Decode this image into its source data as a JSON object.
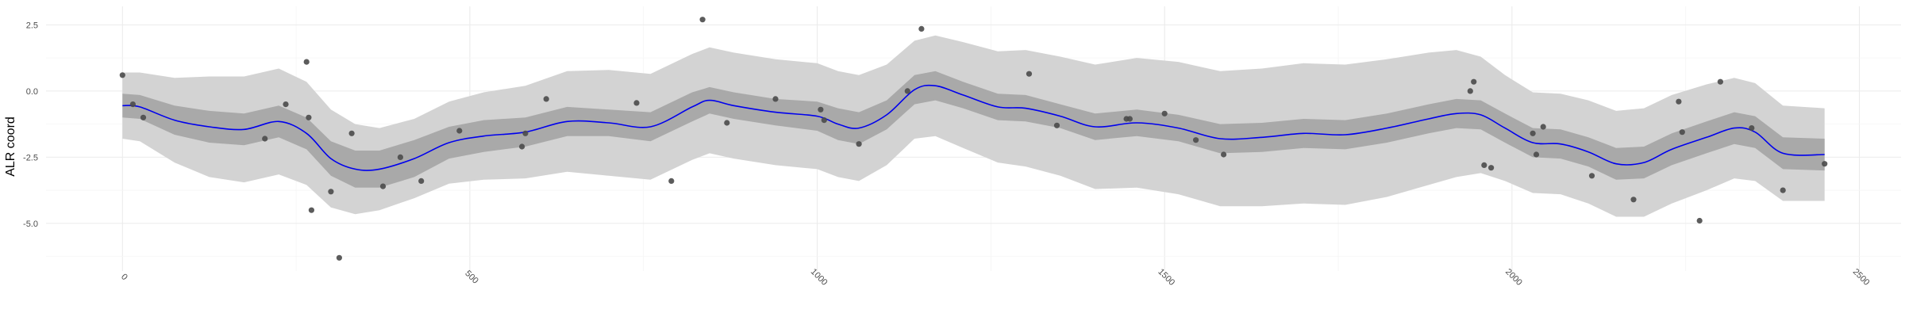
{
  "chart_data": {
    "type": "scatter",
    "title": "",
    "xlabel": "",
    "ylabel": "ALR coord",
    "xlim": [
      -110,
      2560
    ],
    "ylim": [
      -6.8,
      3.2
    ],
    "x_ticks": [
      0,
      500,
      1000,
      1500,
      2000,
      2500
    ],
    "x_tick_labels": [
      "0",
      "500",
      "1000",
      "1500",
      "2000",
      "2500"
    ],
    "y_ticks": [
      2.5,
      0.0,
      -2.5,
      -5.0
    ],
    "y_tick_labels": [
      "2.5",
      "0.0",
      "-2.5",
      "-5.0"
    ],
    "grid": true,
    "legend": "none",
    "colors": {
      "points": "#4a4a4a",
      "fit_line": "#0000ee",
      "inner_band": "#a9a9a9",
      "outer_band": "#d3d3d3",
      "grid": "#ebebeb"
    },
    "points": [
      {
        "x": 0,
        "y": 0.6
      },
      {
        "x": 15,
        "y": -0.5
      },
      {
        "x": 30,
        "y": -1.0
      },
      {
        "x": 205,
        "y": -1.8
      },
      {
        "x": 235,
        "y": -0.5
      },
      {
        "x": 265,
        "y": 1.1
      },
      {
        "x": 268,
        "y": -1.0
      },
      {
        "x": 272,
        "y": -4.5
      },
      {
        "x": 300,
        "y": -3.8
      },
      {
        "x": 312,
        "y": -6.3
      },
      {
        "x": 330,
        "y": -1.6
      },
      {
        "x": 375,
        "y": -3.6
      },
      {
        "x": 400,
        "y": -2.5
      },
      {
        "x": 430,
        "y": -3.4
      },
      {
        "x": 485,
        "y": -1.5
      },
      {
        "x": 575,
        "y": -2.1
      },
      {
        "x": 580,
        "y": -1.6
      },
      {
        "x": 610,
        "y": -0.3
      },
      {
        "x": 740,
        "y": -0.45
      },
      {
        "x": 790,
        "y": -3.4
      },
      {
        "x": 835,
        "y": 2.7
      },
      {
        "x": 870,
        "y": -1.2
      },
      {
        "x": 940,
        "y": -0.3
      },
      {
        "x": 1005,
        "y": -0.7
      },
      {
        "x": 1010,
        "y": -1.1
      },
      {
        "x": 1060,
        "y": -2.0
      },
      {
        "x": 1130,
        "y": 0.0
      },
      {
        "x": 1150,
        "y": 2.35
      },
      {
        "x": 1305,
        "y": 0.65
      },
      {
        "x": 1345,
        "y": -1.3
      },
      {
        "x": 1445,
        "y": -1.05
      },
      {
        "x": 1450,
        "y": -1.05
      },
      {
        "x": 1500,
        "y": -0.85
      },
      {
        "x": 1545,
        "y": -1.85
      },
      {
        "x": 1585,
        "y": -2.4
      },
      {
        "x": 1940,
        "y": 0.0
      },
      {
        "x": 1945,
        "y": 0.35
      },
      {
        "x": 1960,
        "y": -2.8
      },
      {
        "x": 1970,
        "y": -2.9
      },
      {
        "x": 2030,
        "y": -1.6
      },
      {
        "x": 2035,
        "y": -2.4
      },
      {
        "x": 2045,
        "y": -1.35
      },
      {
        "x": 2115,
        "y": -3.2
      },
      {
        "x": 2175,
        "y": -4.1
      },
      {
        "x": 2240,
        "y": -0.4
      },
      {
        "x": 2245,
        "y": -1.55
      },
      {
        "x": 2270,
        "y": -4.9
      },
      {
        "x": 2300,
        "y": 0.35
      },
      {
        "x": 2345,
        "y": -1.4
      },
      {
        "x": 2390,
        "y": -3.75
      },
      {
        "x": 2450,
        "y": -2.75
      }
    ],
    "fit": {
      "x": [
        0,
        25,
        75,
        125,
        175,
        225,
        265,
        300,
        335,
        370,
        420,
        470,
        520,
        580,
        640,
        700,
        760,
        820,
        845,
        880,
        940,
        1000,
        1030,
        1060,
        1100,
        1140,
        1170,
        1210,
        1260,
        1300,
        1350,
        1400,
        1460,
        1520,
        1580,
        1640,
        1700,
        1760,
        1820,
        1880,
        1920,
        1955,
        1990,
        2030,
        2070,
        2110,
        2150,
        2190,
        2230,
        2280,
        2320,
        2350,
        2390,
        2450
      ],
      "y": [
        -0.55,
        -0.6,
        -1.1,
        -1.35,
        -1.45,
        -1.15,
        -1.6,
        -2.55,
        -2.95,
        -2.95,
        -2.55,
        -1.95,
        -1.7,
        -1.55,
        -1.15,
        -1.2,
        -1.35,
        -0.6,
        -0.35,
        -0.55,
        -0.8,
        -0.95,
        -1.25,
        -1.4,
        -0.9,
        0.05,
        0.2,
        -0.15,
        -0.6,
        -0.65,
        -0.95,
        -1.35,
        -1.2,
        -1.4,
        -1.8,
        -1.75,
        -1.6,
        -1.65,
        -1.4,
        -1.05,
        -0.85,
        -0.9,
        -1.4,
        -1.95,
        -2.0,
        -2.3,
        -2.75,
        -2.7,
        -2.2,
        -1.75,
        -1.4,
        -1.55,
        -2.35,
        -2.4
      ]
    },
    "inner_band_halfwidth": [
      0.45,
      0.45,
      0.55,
      0.6,
      0.6,
      0.6,
      0.6,
      0.65,
      0.7,
      0.7,
      0.7,
      0.6,
      0.6,
      0.55,
      0.55,
      0.5,
      0.55,
      0.55,
      0.5,
      0.5,
      0.5,
      0.55,
      0.6,
      0.6,
      0.55,
      0.55,
      0.55,
      0.5,
      0.5,
      0.5,
      0.45,
      0.5,
      0.5,
      0.5,
      0.55,
      0.55,
      0.55,
      0.55,
      0.55,
      0.55,
      0.55,
      0.55,
      0.55,
      0.55,
      0.55,
      0.55,
      0.6,
      0.6,
      0.6,
      0.6,
      0.6,
      0.6,
      0.6,
      0.6
    ],
    "outer_band_halfwidth": [
      1.25,
      1.3,
      1.6,
      1.9,
      2.0,
      2.0,
      1.95,
      1.85,
      1.7,
      1.55,
      1.5,
      1.55,
      1.65,
      1.75,
      1.9,
      2.0,
      2.0,
      2.0,
      2.0,
      2.0,
      2.0,
      2.0,
      2.0,
      2.0,
      1.9,
      1.85,
      1.9,
      2.0,
      2.1,
      2.2,
      2.25,
      2.35,
      2.45,
      2.5,
      2.55,
      2.6,
      2.65,
      2.65,
      2.6,
      2.5,
      2.4,
      2.2,
      2.0,
      1.9,
      1.9,
      1.95,
      2.0,
      2.05,
      2.05,
      2.0,
      1.9,
      1.85,
      1.8,
      1.75
    ]
  }
}
